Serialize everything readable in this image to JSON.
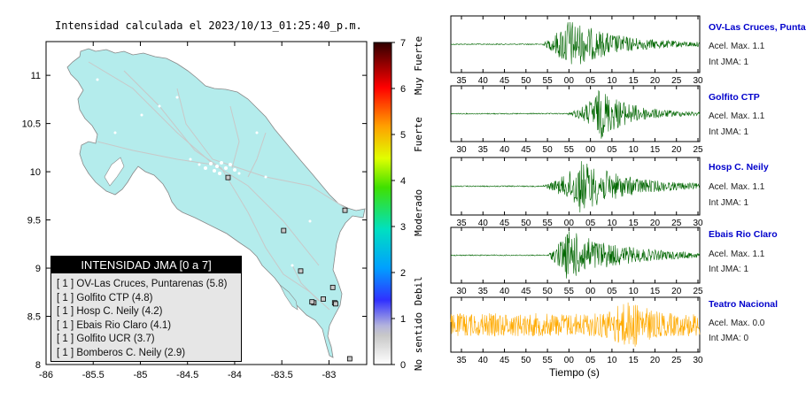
{
  "map": {
    "title": "Intensidad calculada el 2023/10/13_01:25:40_p.m.",
    "lon_ticks": [
      "-86",
      "-85.5",
      "-85",
      "-84.5",
      "-84",
      "-83.5",
      "-83"
    ],
    "lat_ticks": [
      "8",
      "8.5",
      "9",
      "9.5",
      "10",
      "10.5",
      "11"
    ],
    "land_color": "#b4ecec",
    "legend": {
      "title": "INTENSIDAD JMA [0 a 7]",
      "items": [
        "[ 1 ]  OV-Las Cruces, Puntarenas (5.8)",
        "[ 1 ]  Golfito CTP (4.8)",
        "[ 1 ]  Hosp C. Neily (4.2)",
        "[ 1 ]  Ebais Rio Claro (4.1)",
        "[ 1 ]  Golfito UCR (3.7)",
        "[ 1 ]  Bomberos C. Neily (2.9)"
      ]
    }
  },
  "colorbar": {
    "ticks": [
      "0",
      "1",
      "2",
      "3",
      "4",
      "5",
      "6",
      "7"
    ],
    "labels": [
      "No sentido",
      "Debil",
      "Moderado",
      "Fuerte",
      "Muy Fuerte"
    ]
  },
  "waveforms": {
    "x_title": "Tiempo (s)",
    "wave_color": "#006600",
    "alt_color": "#ffaa00",
    "stations": [
      {
        "name": "OV-Las Cruces, Puntarenas",
        "acel": "Acel. Max. 1.1",
        "int": "Int JMA: 1",
        "ticks": [
          "35",
          "40",
          "45",
          "50",
          "55",
          "00",
          "05",
          "10",
          "15",
          "20",
          "25",
          "30"
        ]
      },
      {
        "name": "Golfito CTP",
        "acel": "Acel. Max. 1.1",
        "int": "Int JMA: 1",
        "ticks": [
          "30",
          "35",
          "40",
          "45",
          "50",
          "55",
          "00",
          "05",
          "10",
          "15",
          "20",
          "25"
        ]
      },
      {
        "name": "Hosp C. Neily",
        "acel": "Acel. Max. 1.1",
        "int": "Int JMA: 1",
        "ticks": [
          "35",
          "40",
          "45",
          "50",
          "55",
          "00",
          "05",
          "10",
          "15",
          "20",
          "25",
          "30"
        ]
      },
      {
        "name": "Ebais Rio Claro",
        "acel": "Acel. Max. 1.1",
        "int": "Int JMA: 1",
        "ticks": [
          "30",
          "35",
          "40",
          "45",
          "50",
          "55",
          "00",
          "05",
          "10",
          "15",
          "20",
          "25"
        ]
      },
      {
        "name": "Teatro Nacional",
        "acel": "Acel. Max. 0.0",
        "int": "Int JMA: 0",
        "ticks": [
          "35",
          "40",
          "45",
          "50",
          "55",
          "00",
          "05",
          "10",
          "15",
          "20",
          "25",
          "30"
        ]
      }
    ]
  },
  "chart_data": [
    {
      "type": "scatter",
      "title": "Intensidad calculada el 2023/10/13_01:25:40_p.m.",
      "xlabel": "",
      "ylabel": "",
      "xlim": [
        -86,
        -82.6
      ],
      "ylim": [
        8,
        11.35
      ],
      "series": [
        {
          "name": "OV-Las Cruces, Puntarenas",
          "x": [
            -82.96
          ],
          "y": [
            8.8
          ],
          "intensity": 5.8
        },
        {
          "name": "Golfito CTP",
          "x": [
            -83.16
          ],
          "y": [
            8.64
          ],
          "intensity": 4.8
        },
        {
          "name": "Hosp C. Neily",
          "x": [
            -82.94
          ],
          "y": [
            8.64
          ],
          "intensity": 4.2
        },
        {
          "name": "Ebais Rio Claro",
          "x": [
            -83.06
          ],
          "y": [
            8.68
          ],
          "intensity": 4.1
        },
        {
          "name": "Golfito UCR",
          "x": [
            -83.18
          ],
          "y": [
            8.65
          ],
          "intensity": 3.7
        },
        {
          "name": "Bomberos C. Neily",
          "x": [
            -82.93
          ],
          "y": [
            8.63
          ],
          "intensity": 2.9
        },
        {
          "name": "",
          "x": [
            -84.07,
            -83.48,
            -82.83,
            -83.3,
            -82.78
          ],
          "y": [
            9.94,
            9.39,
            9.6,
            8.97,
            8.06
          ],
          "intensity": 1
        }
      ]
    },
    {
      "type": "heatmap",
      "title": "",
      "xlabel": "",
      "ylabel": "",
      "ylim": [
        0,
        7
      ],
      "ticks": [
        0,
        1,
        2,
        3,
        4,
        5,
        6,
        7
      ],
      "labels": [
        "No sentido",
        "Debil",
        "Moderado",
        "Fuerte",
        "Muy Fuerte"
      ]
    },
    {
      "type": "line",
      "title": "",
      "xlabel": "Tiempo (s)",
      "ylabel": "",
      "series": [
        {
          "name": "OV-Las Cruces, Puntarenas",
          "acel_max": 1.1,
          "int_jma": 1
        },
        {
          "name": "Golfito CTP",
          "acel_max": 1.1,
          "int_jma": 1
        },
        {
          "name": "Hosp C. Neily",
          "acel_max": 1.1,
          "int_jma": 1
        },
        {
          "name": "Ebais Rio Claro",
          "acel_max": 1.1,
          "int_jma": 1
        },
        {
          "name": "Teatro Nacional",
          "acel_max": 0.0,
          "int_jma": 0
        }
      ]
    }
  ]
}
